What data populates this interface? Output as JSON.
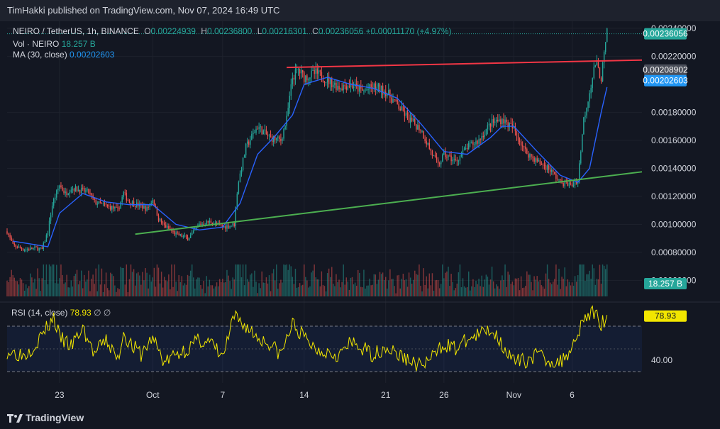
{
  "header": {
    "published_text": "TimHakki published on TradingView.com, Nov 07, 2024 16:49 UTC"
  },
  "legend": {
    "symbol": "NEIRO / TetherUS, 1h, BINANCE",
    "open_key": "O",
    "open": "0.00224939",
    "high_key": "H",
    "high": "0.00236800",
    "low_key": "L",
    "low": "0.00216301",
    "close_key": "C",
    "close": "0.00236056",
    "change": "+0.00011170 (+4.97%)",
    "vol_label": "Vol · NEIRO",
    "vol_value": "18.257 B",
    "ma_label": "MA (30, close)",
    "ma_value": "0.00202603",
    "rsi_label": "RSI (14, close)",
    "rsi_value": "78.93",
    "rsi_extra": "∅ ∅"
  },
  "footer": {
    "brand": "TradingView"
  },
  "colors": {
    "background": "#131722",
    "grid": "#1e222d",
    "up": "#26a69a",
    "down": "#ef5350",
    "ma": "#2962ff",
    "rsi": "#f2e600",
    "resistance": "#f23645",
    "support": "#4caf50"
  },
  "chart_data": {
    "type": "candlestick",
    "interval": "1h",
    "price_axis": {
      "ticks": [
        "0.00240000",
        "0.00220000",
        "0.00180000",
        "0.00160000",
        "0.00140000",
        "0.00120000",
        "0.00100000",
        "0.00080000",
        "0.00060000"
      ],
      "range": [
        0.00045,
        0.00245
      ]
    },
    "time_axis": {
      "labels": [
        "23",
        "Oct",
        "7",
        "14",
        "21",
        "26",
        "Nov",
        "6"
      ],
      "label_days": [
        -8,
        0,
        6,
        13,
        20,
        25,
        31,
        36
      ],
      "range_days": [
        -12.5,
        42
      ]
    },
    "price_path": [
      [
        -12.5,
        0.00095
      ],
      [
        -12,
        0.00085
      ],
      [
        -11,
        0.00082
      ],
      [
        -10,
        0.00083
      ],
      [
        -9.5,
        0.00082
      ],
      [
        -9,
        0.00095
      ],
      [
        -8.6,
        0.00115
      ],
      [
        -8,
        0.00128
      ],
      [
        -7.5,
        0.00122
      ],
      [
        -7,
        0.00126
      ],
      [
        -6,
        0.00124
      ],
      [
        -5.5,
        0.00123
      ],
      [
        -5,
        0.00116
      ],
      [
        -4,
        0.00113
      ],
      [
        -3.5,
        0.00112
      ],
      [
        -3,
        0.0011
      ],
      [
        -2.5,
        0.00122
      ],
      [
        -2,
        0.00116
      ],
      [
        -1,
        0.00113
      ],
      [
        -0.5,
        0.00111
      ],
      [
        0,
        0.00118
      ],
      [
        0.5,
        0.00104
      ],
      [
        1,
        0.00099
      ],
      [
        2,
        0.00093
      ],
      [
        3,
        0.0009
      ],
      [
        3.5,
        0.00094
      ],
      [
        4,
        0.001
      ],
      [
        5,
        0.00102
      ],
      [
        6,
        0.00098
      ],
      [
        7,
        0.001
      ],
      [
        7.3,
        0.00128
      ],
      [
        8,
        0.00155
      ],
      [
        9,
        0.0017
      ],
      [
        10,
        0.00162
      ],
      [
        11,
        0.0016
      ],
      [
        11.5,
        0.00175
      ],
      [
        12,
        0.00205
      ],
      [
        12.5,
        0.0021
      ],
      [
        13,
        0.00205
      ],
      [
        14,
        0.00208
      ],
      [
        15,
        0.00203
      ],
      [
        16,
        0.00198
      ],
      [
        17,
        0.002
      ],
      [
        18,
        0.00195
      ],
      [
        19,
        0.00198
      ],
      [
        20,
        0.00195
      ],
      [
        21,
        0.00185
      ],
      [
        22,
        0.00175
      ],
      [
        23,
        0.00168
      ],
      [
        24,
        0.0015
      ],
      [
        24.5,
        0.00142
      ],
      [
        25,
        0.0015
      ],
      [
        26,
        0.00145
      ],
      [
        27,
        0.00155
      ],
      [
        28,
        0.0016
      ],
      [
        29,
        0.00172
      ],
      [
        30,
        0.00175
      ],
      [
        31,
        0.00168
      ],
      [
        32,
        0.00152
      ],
      [
        33,
        0.00145
      ],
      [
        34,
        0.0014
      ],
      [
        35,
        0.0013
      ],
      [
        36,
        0.00128
      ],
      [
        36.5,
        0.00132
      ],
      [
        37,
        0.00175
      ],
      [
        37.5,
        0.00195
      ],
      [
        38,
        0.00215
      ],
      [
        38.5,
        0.00205
      ],
      [
        39,
        0.00236
      ]
    ],
    "moving_average": [
      [
        -12,
        0.00088
      ],
      [
        -9,
        0.00084
      ],
      [
        -8,
        0.00108
      ],
      [
        -6,
        0.00122
      ],
      [
        -4,
        0.00116
      ],
      [
        -2,
        0.00114
      ],
      [
        0,
        0.00114
      ],
      [
        2,
        0.001
      ],
      [
        4,
        0.00096
      ],
      [
        6,
        0.00098
      ],
      [
        7.5,
        0.00115
      ],
      [
        9,
        0.0015
      ],
      [
        10.5,
        0.00163
      ],
      [
        12,
        0.00178
      ],
      [
        13,
        0.002
      ],
      [
        15,
        0.00205
      ],
      [
        17,
        0.002
      ],
      [
        19,
        0.00197
      ],
      [
        21,
        0.0019
      ],
      [
        23,
        0.00172
      ],
      [
        25,
        0.00152
      ],
      [
        27,
        0.0015
      ],
      [
        29,
        0.00162
      ],
      [
        30,
        0.0017
      ],
      [
        31,
        0.0017
      ],
      [
        33,
        0.00152
      ],
      [
        35,
        0.00135
      ],
      [
        36.5,
        0.0013
      ],
      [
        37.5,
        0.0014
      ],
      [
        38.5,
        0.0018
      ],
      [
        39,
        0.00198
      ]
    ],
    "resistance_line": {
      "start": [
        11.5,
        0.00212
      ],
      "end": [
        42,
        0.002173
      ],
      "label": "0.00208902"
    },
    "support_line": {
      "start": [
        -1.5,
        0.00093
      ],
      "end": [
        42,
        0.001375
      ]
    },
    "last_price": {
      "value": 0.00236056,
      "label": "0.00236056"
    },
    "ma_label_value": {
      "value": 0.00202603,
      "label": "0.00202603"
    },
    "volume": {
      "last": "18.257 B",
      "scale_label": "0.00060000"
    },
    "rsi": {
      "levels": [
        70,
        30
      ],
      "ticks": [
        "40.00"
      ],
      "range": [
        20,
        90
      ],
      "last": 78.93,
      "last_label": "78.93",
      "path": [
        [
          -12.5,
          48
        ],
        [
          -11,
          45
        ],
        [
          -10,
          55
        ],
        [
          -9,
          70
        ],
        [
          -8.5,
          78
        ],
        [
          -8,
          60
        ],
        [
          -7,
          52
        ],
        [
          -6,
          68
        ],
        [
          -5,
          45
        ],
        [
          -4,
          58
        ],
        [
          -3,
          40
        ],
        [
          -2.5,
          65
        ],
        [
          -2,
          55
        ],
        [
          -1,
          45
        ],
        [
          0,
          60
        ],
        [
          1,
          38
        ],
        [
          2,
          45
        ],
        [
          3,
          50
        ],
        [
          4,
          58
        ],
        [
          5,
          55
        ],
        [
          6,
          42
        ],
        [
          7,
          78
        ],
        [
          8,
          70
        ],
        [
          9,
          60
        ],
        [
          10,
          55
        ],
        [
          11,
          45
        ],
        [
          12,
          72
        ],
        [
          13,
          60
        ],
        [
          14,
          50
        ],
        [
          15,
          48
        ],
        [
          16,
          45
        ],
        [
          17,
          55
        ],
        [
          18,
          50
        ],
        [
          19,
          45
        ],
        [
          20,
          52
        ],
        [
          21,
          45
        ],
        [
          22,
          40
        ],
        [
          23,
          35
        ],
        [
          24,
          42
        ],
        [
          25,
          55
        ],
        [
          26,
          50
        ],
        [
          27,
          58
        ],
        [
          28,
          62
        ],
        [
          29,
          68
        ],
        [
          30,
          55
        ],
        [
          31,
          38
        ],
        [
          32,
          40
        ],
        [
          33,
          45
        ],
        [
          34,
          40
        ],
        [
          35,
          38
        ],
        [
          36,
          52
        ],
        [
          37,
          78
        ],
        [
          38,
          82
        ],
        [
          38.5,
          72
        ],
        [
          39,
          79
        ]
      ]
    }
  }
}
